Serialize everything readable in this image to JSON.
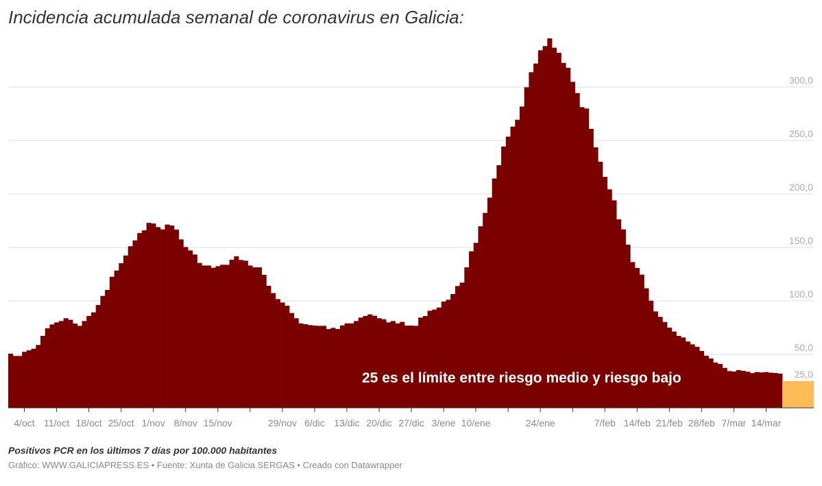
{
  "title": "Incidencia acumulada semanal de coronavirus en Galicia:",
  "notes": "Positivos PCR en los últimos 7 días por 100.000 habitantes",
  "byline": "Gráfico: WWW.GALICIAPRESS.ES • Fuente: Xunta de Galicia SERGAS • Creado con Datawrapper",
  "chart_data": {
    "type": "bar",
    "x_range": [
      "1/oct",
      "17/mar"
    ],
    "x_ticks": [
      "4/oct",
      "11/oct",
      "18/oct",
      "25/oct",
      "1/nov",
      "8/nov",
      "15/nov",
      "",
      "29/nov",
      "6/dic",
      "13/dic",
      "20/dic",
      "27/dic",
      "3/ene",
      "10/ene",
      "",
      "24/ene",
      "",
      "7/feb",
      "14/feb",
      "21/feb",
      "28/feb",
      "7/mar",
      "14/mar"
    ],
    "y_ticks": [
      {
        "value": 300,
        "label": "300,0"
      },
      {
        "value": 250,
        "label": "250,0"
      },
      {
        "value": 200,
        "label": "200,0"
      },
      {
        "value": 150,
        "label": "150,0"
      },
      {
        "value": 100,
        "label": "100,0"
      },
      {
        "value": 50,
        "label": "50,0"
      },
      {
        "value": 25,
        "label": "25,0"
      }
    ],
    "ylim": [
      0,
      345
    ],
    "grid": true,
    "bar_color": "#7b0000",
    "values": [
      50.6,
      48.5,
      48.5,
      52.4,
      53.8,
      55.3,
      58.8,
      67.3,
      74.4,
      78.0,
      79.9,
      81.2,
      83.8,
      82.3,
      78.8,
      76.7,
      81.2,
      85.9,
      89.3,
      96.2,
      104.7,
      110.3,
      122.6,
      128.4,
      135.3,
      142.5,
      151.1,
      156.6,
      163.5,
      166.0,
      173.0,
      172.4,
      169.0,
      166.9,
      171.4,
      170.5,
      166.7,
      157.5,
      150.4,
      147.2,
      143.4,
      135.5,
      133.1,
      133.1,
      131.0,
      132.5,
      133.8,
      133.8,
      138.5,
      141.7,
      138.3,
      137.6,
      133.1,
      131.4,
      131.4,
      124.4,
      114.1,
      107.3,
      101.7,
      98.5,
      95.5,
      88.7,
      83.8,
      79.0,
      78.2,
      77.4,
      76.9,
      76.7,
      76.7,
      73.7,
      74.8,
      73.7,
      77.1,
      79.0,
      79.0,
      81.2,
      84.4,
      85.9,
      87.4,
      86.1,
      83.8,
      82.9,
      79.9,
      81.2,
      79.0,
      80.4,
      76.9,
      76.9,
      76.7,
      84.4,
      85.9,
      90.8,
      91.9,
      93.8,
      99.4,
      101.1,
      106.4,
      113.9,
      117.1,
      131.4,
      146.4,
      154.3,
      169.8,
      182.3,
      196.6,
      214.5,
      226.9,
      244.4,
      253.6,
      263.0,
      269.4,
      281.8,
      299.8,
      313.9,
      322.0,
      334.4,
      338.3,
      345.5,
      336.8,
      332.0,
      322.6,
      318.0,
      304.9,
      294.4,
      281.2,
      279.9,
      260.9,
      243.6,
      230.1,
      216.0,
      204.3,
      194.0,
      176.3,
      166.9,
      152.6,
      136.3,
      130.8,
      124.6,
      111.8,
      100.2,
      90.2,
      85.1,
      80.3,
      75.0,
      71.4,
      67.3,
      65.8,
      62.0,
      59.4,
      57.1,
      53.2,
      48.7,
      46.2,
      42.3,
      41.0,
      37.4,
      34.4,
      34.0,
      35.3,
      34.6,
      33.8,
      32.5,
      33.5,
      33.1,
      33.5,
      32.9,
      32.6,
      32.0
    ],
    "highlight_band": {
      "value": 25,
      "color": "#ffbb55"
    },
    "annotation": "25 es el límite entre riesgo medio y riesgo bajo"
  }
}
